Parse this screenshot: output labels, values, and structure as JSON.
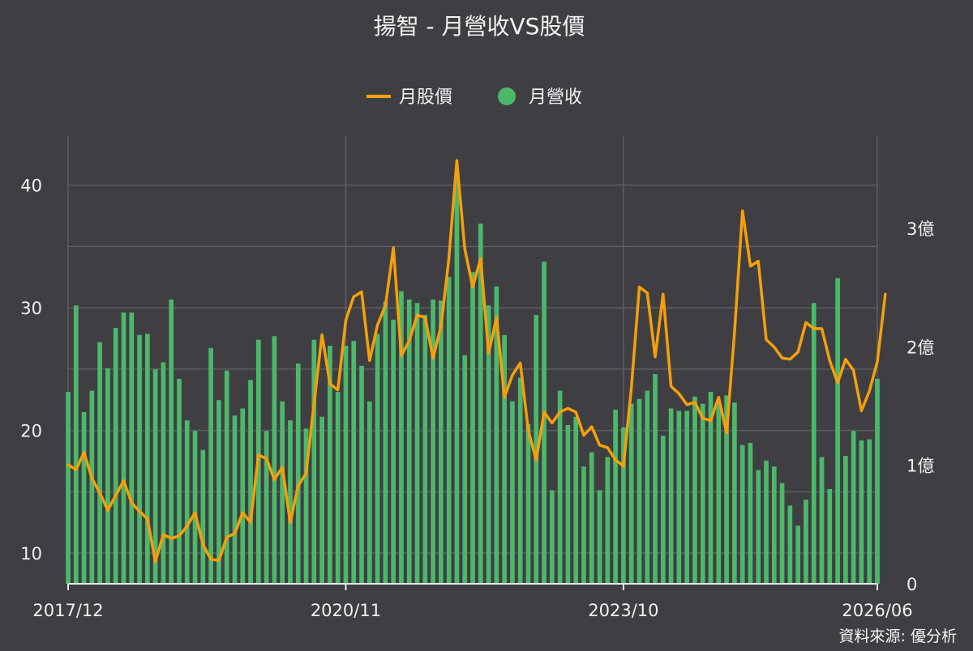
{
  "chart_data": {
    "type": "bar",
    "title": "揚智 - 月營收VS股價",
    "source": "資料來源: 優分析",
    "colors": {
      "price": "#f5a00a",
      "revenue": "#4cb86a",
      "background": "#3f3f43",
      "grid": "#5e5e63"
    },
    "legend_position": "top-center",
    "grid": true,
    "x_range": [
      "2017/12",
      "2026/06"
    ],
    "x_tick_labels": [
      "2017/12",
      "2020/11",
      "2023/10",
      "2026/06"
    ],
    "y_left": {
      "label": "",
      "ticks": [
        "10",
        "20",
        "30",
        "40"
      ],
      "range": [
        7.5,
        44
      ]
    },
    "y_right": {
      "label": "",
      "ticks": [
        "0",
        "1億",
        "2億",
        "3億"
      ],
      "range": [
        0,
        3.78
      ]
    },
    "series": [
      {
        "name": "月股價",
        "type": "line",
        "axis": "left",
        "values": [
          17.2,
          16.8,
          18.2,
          16.1,
          14.9,
          13.5,
          14.7,
          15.9,
          14.1,
          13.4,
          12.8,
          9.3,
          11.5,
          11.2,
          11.4,
          12.2,
          13.3,
          10.7,
          9.5,
          9.4,
          11.3,
          11.6,
          13.3,
          12.5,
          18.0,
          17.7,
          16.0,
          17.0,
          12.5,
          15.5,
          16.5,
          22.2,
          27.8,
          23.8,
          23.3,
          29.0,
          30.9,
          31.3,
          25.7,
          28.6,
          30.2,
          34.9,
          26.1,
          27.3,
          29.4,
          29.2,
          25.9,
          28.5,
          34.0,
          42.0,
          34.8,
          31.7,
          34.0,
          26.3,
          29.2,
          22.7,
          24.5,
          25.5,
          20.0,
          17.6,
          21.5,
          20.6,
          21.5,
          21.8,
          21.5,
          19.6,
          20.3,
          18.8,
          18.6,
          17.6,
          17.1,
          23.5,
          31.7,
          31.2,
          26.0,
          31.1,
          23.6,
          23.0,
          22.1,
          22.3,
          21.0,
          20.8,
          22.7,
          19.8,
          28.0,
          37.9,
          33.4,
          33.8,
          27.4,
          26.8,
          25.9,
          25.8,
          26.4,
          28.8,
          28.3,
          28.3,
          25.7,
          23.9,
          25.8,
          24.9,
          21.6,
          23.2,
          25.6,
          31.1
        ]
      },
      {
        "name": "月營收",
        "type": "bar",
        "axis": "right",
        "unit": "億",
        "values": [
          1.62,
          2.35,
          1.45,
          1.63,
          2.04,
          1.82,
          2.16,
          2.29,
          2.29,
          2.1,
          2.11,
          1.81,
          1.87,
          2.4,
          1.73,
          1.38,
          1.29,
          1.13,
          1.99,
          1.55,
          1.8,
          1.42,
          1.48,
          1.72,
          2.06,
          1.29,
          2.09,
          1.54,
          1.38,
          1.86,
          1.31,
          2.06,
          1.41,
          2.01,
          1.62,
          2.01,
          2.05,
          1.84,
          1.54,
          2.11,
          2.38,
          2.23,
          2.47,
          2.4,
          2.37,
          2.27,
          2.4,
          2.39,
          2.59,
          3.43,
          1.93,
          2.63,
          3.04,
          2.35,
          2.51,
          2.1,
          1.54,
          1.74,
          1.35,
          2.27,
          2.72,
          0.79,
          1.63,
          1.34,
          1.41,
          0.99,
          1.11,
          0.79,
          1.07,
          1.47,
          1.32,
          1.52,
          1.56,
          1.63,
          1.77,
          1.25,
          1.48,
          1.46,
          1.46,
          1.58,
          1.52,
          1.62,
          1.53,
          1.59,
          1.53,
          1.17,
          1.19,
          0.96,
          1.04,
          0.99,
          0.85,
          0.66,
          0.49,
          0.71,
          2.37,
          1.07,
          0.8,
          2.58,
          1.08,
          1.29,
          1.21,
          1.22,
          1.73
        ]
      }
    ]
  }
}
